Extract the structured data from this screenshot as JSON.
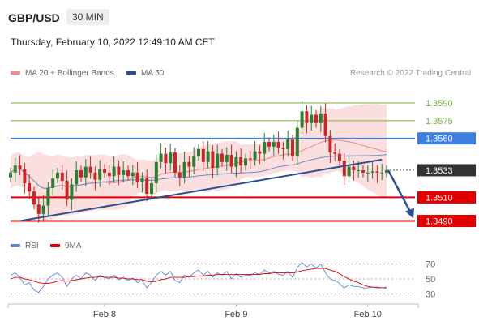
{
  "header": {
    "pair": "GBP/USD",
    "timeframe": "30 MIN",
    "datetime": "Thursday, February 10, 2022 12:49:10 AM CET"
  },
  "copyright": "Research © 2022 Trading Central",
  "colors": {
    "resistance": "#7cb342",
    "pivot": "#3d7ee0",
    "support": "#e00000",
    "last": "#333333",
    "bull": "#2e7d32",
    "bear": "#c62828",
    "bollinger": "#f6b9b9",
    "ma20": "#e88a8a",
    "ma50": "#6b8ec9",
    "trend": "#2b4f8e",
    "rsi": "#5b86d6",
    "rsi_ma": "#e00000"
  },
  "chart_data": [
    {
      "type": "line",
      "series_kind": "candlestick",
      "legend": [
        {
          "name": "MA 20 + Bollinger Bands",
          "color": "#f28b8b"
        },
        {
          "name": "MA 50",
          "color": "#2b4f8e"
        }
      ],
      "x_ticks": [
        "Feb 8",
        "Feb 9",
        "Feb 10"
      ],
      "x_tick_index": [
        20,
        48,
        76
      ],
      "ylim": [
        1.3478,
        1.3612
      ],
      "levels": [
        {
          "label": "1.3590",
          "value": 1.359,
          "kind": "resistance"
        },
        {
          "label": "1.3575",
          "value": 1.3575,
          "kind": "resistance"
        },
        {
          "label": "1.3560",
          "value": 1.356,
          "kind": "pivot"
        },
        {
          "label": "1.3533",
          "value": 1.3533,
          "kind": "last"
        },
        {
          "label": "1.3510",
          "value": 1.351,
          "kind": "support"
        },
        {
          "label": "1.3490",
          "value": 1.349,
          "kind": "support"
        }
      ],
      "closes": [
        1.3531,
        1.3537,
        1.3534,
        1.3522,
        1.3515,
        1.3504,
        1.3496,
        1.3503,
        1.3518,
        1.3526,
        1.3531,
        1.3524,
        1.3508,
        1.3521,
        1.3533,
        1.3527,
        1.3536,
        1.3531,
        1.3525,
        1.3534,
        1.3531,
        1.3528,
        1.3536,
        1.3529,
        1.3533,
        1.3528,
        1.3531,
        1.3523,
        1.3526,
        1.3513,
        1.3522,
        1.354,
        1.3547,
        1.3539,
        1.3548,
        1.3531,
        1.3527,
        1.354,
        1.3536,
        1.3545,
        1.3551,
        1.354,
        1.3549,
        1.3535,
        1.3547,
        1.354,
        1.3546,
        1.3536,
        1.3544,
        1.3537,
        1.3543,
        1.3542,
        1.3549,
        1.3547,
        1.3557,
        1.3553,
        1.3557,
        1.3552,
        1.3551,
        1.3559,
        1.3545,
        1.3569,
        1.3583,
        1.3573,
        1.358,
        1.3573,
        1.3581,
        1.3562,
        1.3548,
        1.3547,
        1.3541,
        1.3528,
        1.3536,
        1.3533,
        1.3533,
        1.3531,
        1.3531,
        1.3532,
        1.3531,
        1.3531,
        1.3533
      ],
      "trendlines": [
        {
          "from": [
            2,
            1.349
          ],
          "to": [
            79,
            1.3542
          ]
        },
        {
          "from": [
            67,
            1.3551
          ],
          "to": [
            80.5,
            1.349
          ]
        }
      ]
    },
    {
      "type": "line",
      "legend": [
        {
          "name": "RSI",
          "color": "#5b86d6"
        },
        {
          "name": "9MA",
          "color": "#e00000"
        }
      ],
      "ylim": [
        22,
        78
      ],
      "y_ticks": [
        70,
        50,
        30
      ],
      "rsi": [
        55,
        58,
        52,
        42,
        45,
        35,
        32,
        40,
        50,
        55,
        58,
        52,
        40,
        50,
        55,
        50,
        58,
        55,
        48,
        55,
        52,
        50,
        55,
        49,
        52,
        48,
        51,
        45,
        48,
        38,
        45,
        55,
        60,
        55,
        60,
        48,
        45,
        55,
        52,
        58,
        62,
        55,
        60,
        52,
        58,
        55,
        60,
        50,
        57,
        52,
        55,
        55,
        58,
        56,
        62,
        58,
        60,
        56,
        55,
        60,
        52,
        65,
        72,
        66,
        70,
        64,
        70,
        58,
        50,
        48,
        44,
        38,
        42,
        40,
        40,
        38,
        38,
        39,
        38,
        38,
        39
      ],
      "rsi_ma": [
        50,
        52,
        52,
        50,
        49,
        47,
        45,
        44,
        44,
        45,
        47,
        48,
        47,
        48,
        49,
        50,
        51,
        52,
        52,
        53,
        52,
        52,
        52,
        51,
        51,
        50,
        50,
        49,
        49,
        47,
        46,
        47,
        49,
        50,
        52,
        52,
        52,
        52,
        53,
        53,
        54,
        54,
        55,
        55,
        56,
        56,
        56,
        56,
        56,
        56,
        56,
        56,
        56,
        56,
        57,
        57,
        58,
        58,
        58,
        58,
        58,
        59,
        61,
        62,
        63,
        64,
        64,
        64,
        62,
        60,
        57,
        53,
        50,
        47,
        45,
        42,
        40,
        39,
        39,
        38,
        38
      ]
    }
  ]
}
